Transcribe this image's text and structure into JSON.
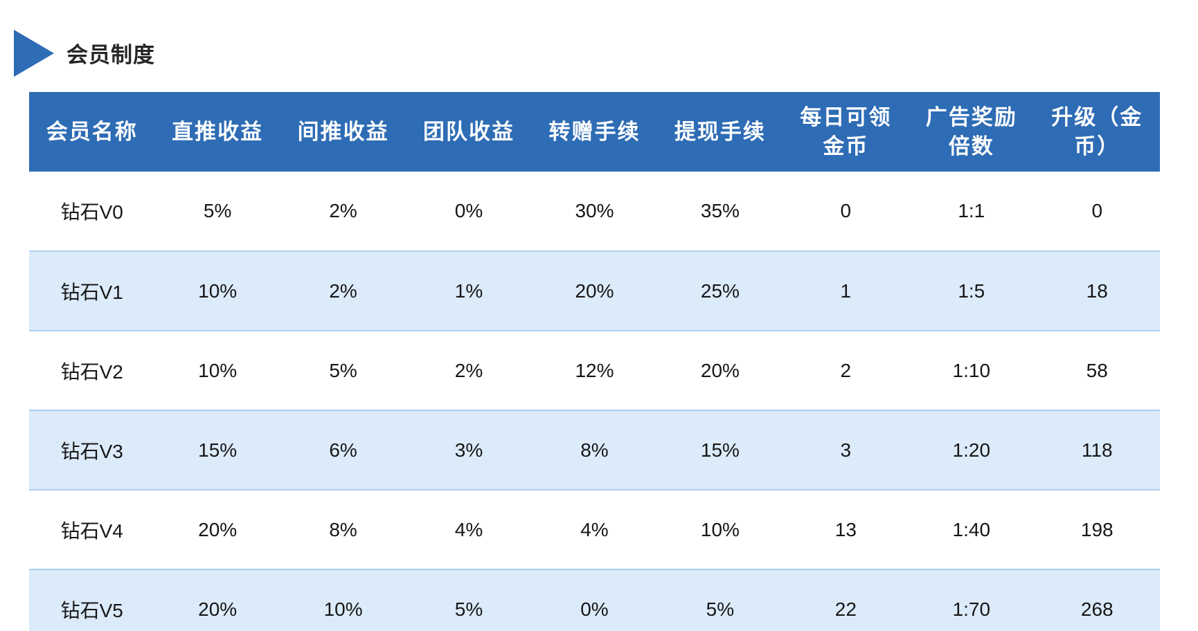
{
  "page_title": "会员制度",
  "colors": {
    "accent_blue": "#2e6cb5",
    "header_text": "#ffffff",
    "alt_row_bg": "#dcebfa",
    "row_border": "#abcfee",
    "title_text": "#262626"
  },
  "table": {
    "columns": [
      "会员名称",
      "直推收益",
      "间推收益",
      "团队收益",
      "转赠手续",
      "提现手续",
      "每日可领金币",
      "广告奖励倍数",
      "升级（金币）"
    ],
    "rows": [
      {
        "name": "钻石V0",
        "direct": "5%",
        "indirect": "2%",
        "team": "0%",
        "transfer": "30%",
        "withdraw": "35%",
        "daily_coins": "0",
        "ad_multiplier": "1:1",
        "upgrade_cost": "0"
      },
      {
        "name": "钻石V1",
        "direct": "10%",
        "indirect": "2%",
        "team": "1%",
        "transfer": "20%",
        "withdraw": "25%",
        "daily_coins": "1",
        "ad_multiplier": "1:5",
        "upgrade_cost": "18"
      },
      {
        "name": "钻石V2",
        "direct": "10%",
        "indirect": "5%",
        "team": "2%",
        "transfer": "12%",
        "withdraw": "20%",
        "daily_coins": "2",
        "ad_multiplier": "1:10",
        "upgrade_cost": "58"
      },
      {
        "name": "钻石V3",
        "direct": "15%",
        "indirect": "6%",
        "team": "3%",
        "transfer": "8%",
        "withdraw": "15%",
        "daily_coins": "3",
        "ad_multiplier": "1:20",
        "upgrade_cost": "118"
      },
      {
        "name": "钻石V4",
        "direct": "20%",
        "indirect": "8%",
        "team": "4%",
        "transfer": "4%",
        "withdraw": "10%",
        "daily_coins": "13",
        "ad_multiplier": "1:40",
        "upgrade_cost": "198"
      },
      {
        "name": "钻石V5",
        "direct": "20%",
        "indirect": "10%",
        "team": "5%",
        "transfer": "0%",
        "withdraw": "5%",
        "daily_coins": "22",
        "ad_multiplier": "1:70",
        "upgrade_cost": "268"
      }
    ]
  }
}
